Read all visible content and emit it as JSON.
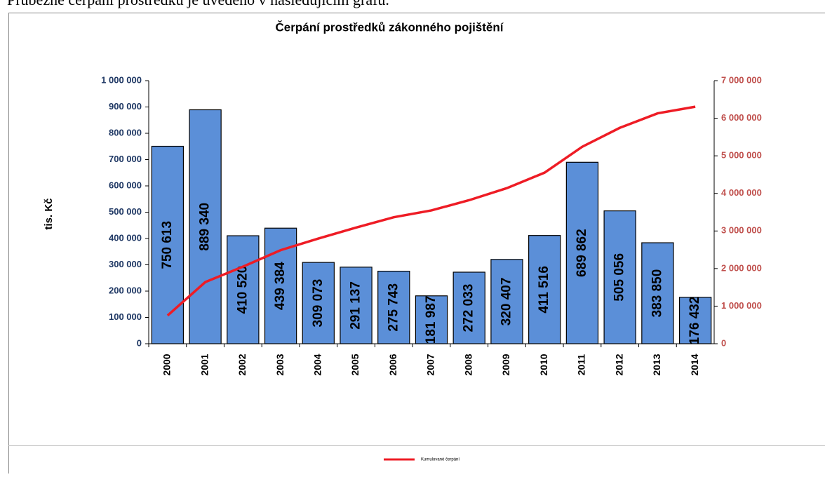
{
  "intro": "Průběžné čerpání prostředků je uvedeno v následujícím grafu.",
  "chart_data": {
    "type": "bar+line",
    "title": "Čerpání prostředků zákonného pojištění",
    "ylabel": "tis. Kč",
    "categories": [
      "2000",
      "2001",
      "2002",
      "2003",
      "2004",
      "2005",
      "2006",
      "2007",
      "2008",
      "2009",
      "2010",
      "2011",
      "2012",
      "2013",
      "2014"
    ],
    "series": [
      {
        "type": "bar",
        "color": "#5b8fd8",
        "values": [
          750613,
          889340,
          410520,
          439384,
          309073,
          291137,
          275743,
          181987,
          272033,
          320407,
          411516,
          689862,
          505056,
          383850,
          176432
        ],
        "value_labels": [
          "750 613",
          "889 340",
          "410 520",
          "439 384",
          "309 073",
          "291 137",
          "275 743",
          "181 987",
          "272 033",
          "320 407",
          "411 516",
          "689 862",
          "505 056",
          "383 850",
          "176 432"
        ]
      },
      {
        "type": "line",
        "name": "Kumulované čerpání",
        "color": "#ee1c25",
        "axis": "y2",
        "values": [
          750613,
          1639953,
          2050473,
          2489857,
          2798930,
          3090067,
          3365810,
          3547797,
          3819830,
          4140237,
          4551753,
          5241615,
          5746671,
          6130521,
          6306953
        ]
      }
    ],
    "ylim": [
      0,
      1000000
    ],
    "yticks": [
      0,
      {
        "value": 100000,
        "label": "100 000"
      },
      {
        "value": 200000,
        "label": "200 000"
      },
      {
        "value": 300000,
        "label": "300 000"
      },
      {
        "value": 400000,
        "label": "400 000"
      },
      {
        "value": 500000,
        "label": "500 000"
      },
      {
        "value": 600000,
        "label": "600 000"
      },
      {
        "value": 700000,
        "label": "700 000"
      },
      {
        "value": 800000,
        "label": "800 000"
      },
      {
        "value": 900000,
        "label": "900 000"
      },
      {
        "value": 1000000,
        "label": "1 000 000"
      }
    ],
    "y2lim": [
      0,
      7000000
    ],
    "y2ticks": [
      0,
      {
        "value": 1000000,
        "label": "1 000 000"
      },
      {
        "value": 2000000,
        "label": "2 000 000"
      },
      {
        "value": 3000000,
        "label": "3 000 000"
      },
      {
        "value": 4000000,
        "label": "4 000 000"
      },
      {
        "value": 5000000,
        "label": "5 000 000"
      },
      {
        "value": 6000000,
        "label": "6 000 000"
      },
      {
        "value": 7000000,
        "label": "7 000 000"
      }
    ],
    "legend": "bottom"
  }
}
